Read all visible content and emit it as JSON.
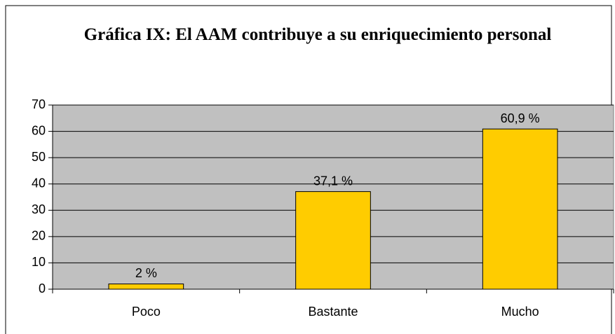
{
  "chart_data": {
    "type": "bar",
    "title": "Gráfica IX: El AAM contribuye a su enriquecimiento personal",
    "categories": [
      "Poco",
      "Bastante",
      "Mucho"
    ],
    "values": [
      2,
      37.1,
      60.9
    ],
    "value_labels": [
      "2 %",
      "37,1 %",
      "60,9 %"
    ],
    "color": "#ffcc00",
    "ylim": [
      0,
      70
    ],
    "yticks": [
      0,
      10,
      20,
      30,
      40,
      50,
      60,
      70
    ],
    "grid": true
  }
}
